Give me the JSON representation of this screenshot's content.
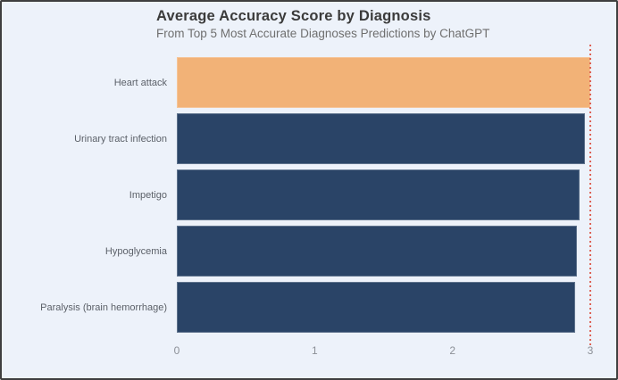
{
  "figure": {
    "background": "#edf2fa",
    "border_color": "#3f3f3f"
  },
  "chart_data": {
    "type": "bar",
    "orientation": "horizontal",
    "title": "Average Accuracy Score by Diagnosis",
    "subtitle": "From Top 5 Most Accurate Diagnoses Predictions by ChatGPT",
    "categories": [
      "Heart attack",
      "Urinary tract infection",
      "Impetigo",
      "Hypoglycemia",
      "Paralysis (brain hemorrhage)"
    ],
    "values": [
      3.0,
      2.96,
      2.92,
      2.9,
      2.89
    ],
    "xlim": [
      0,
      3
    ],
    "xticks": [
      "0",
      "1",
      "2",
      "3"
    ],
    "highlight_index": 0,
    "highlight_category": "Heart attack",
    "bar_color_default": "#2a4467",
    "bar_color_highlight": "#f2b277",
    "reference_line": {
      "x": 3,
      "style": "dotted",
      "color": "#dc5244"
    },
    "grid": false,
    "legend_position": "none",
    "title_color": "#3b3b3b",
    "subtitle_color": "#6f6f6f",
    "label_color": "#5c6169",
    "tick_color": "#8c9097"
  }
}
